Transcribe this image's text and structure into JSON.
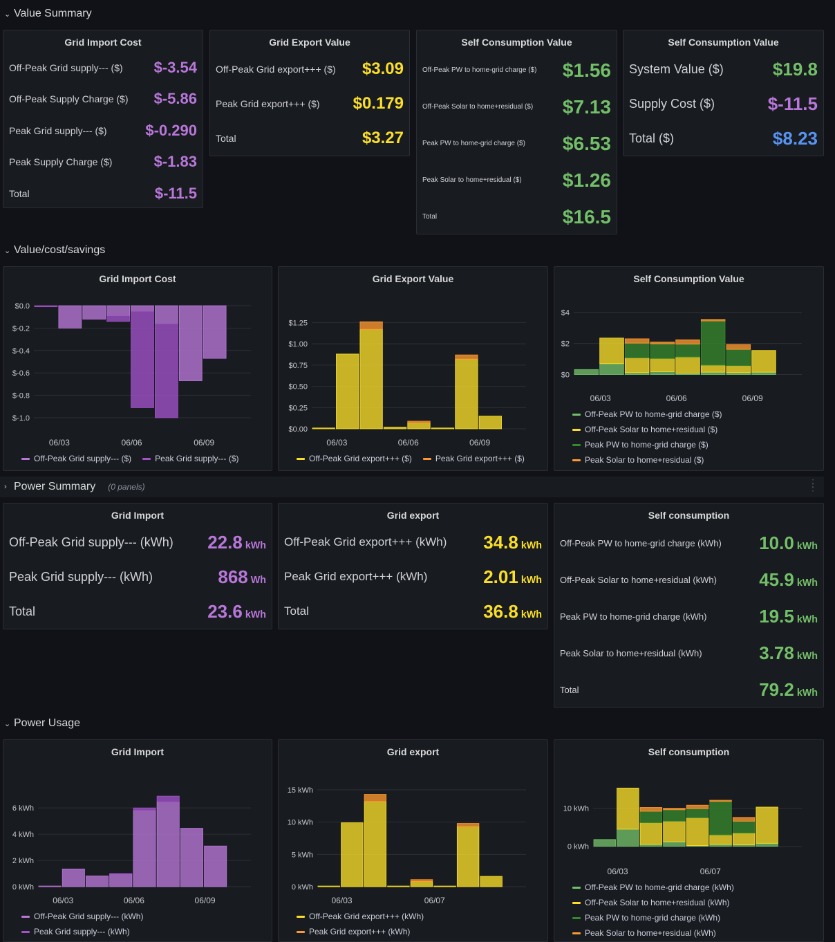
{
  "rows": {
    "value_summary": "Value Summary",
    "value_cost": "Value/cost/savings",
    "power_summary": "Power Summary",
    "power_summary_sub": "(0 panels)",
    "power_usage": "Power Usage"
  },
  "colors": {
    "purple": "#b877d9",
    "purple_dark": "#a352cc",
    "yellow": "#fade2a",
    "orange": "#ff9830",
    "green": "#73bf69",
    "green_dark": "#37872d",
    "blue": "#5794f2"
  },
  "vs": {
    "import": {
      "title": "Grid Import Cost",
      "rows": [
        {
          "label": "Off-Peak Grid supply--- ($)",
          "value": "$-3.54"
        },
        {
          "label": "Off-Peak Supply Charge ($)",
          "value": "$-5.86"
        },
        {
          "label": "Peak Grid supply--- ($)",
          "value": "$-0.290"
        },
        {
          "label": "Peak Supply Charge ($)",
          "value": "$-1.83"
        },
        {
          "label": "Total",
          "value": "$-11.5"
        }
      ]
    },
    "export": {
      "title": "Grid Export Value",
      "rows": [
        {
          "label": "Off-Peak Grid export+++ ($)",
          "value": "$3.09"
        },
        {
          "label": "Peak Grid export+++ ($)",
          "value": "$0.179"
        },
        {
          "label": "Total",
          "value": "$3.27"
        }
      ]
    },
    "self": {
      "title": "Self Consumption Value",
      "rows": [
        {
          "label": "Off-Peak PW to home-grid charge ($)",
          "value": "$1.56"
        },
        {
          "label": "Off-Peak Solar to home+residual ($)",
          "value": "$7.13"
        },
        {
          "label": "Peak PW to home-grid charge ($)",
          "value": "$6.53"
        },
        {
          "label": "Peak Solar to home+residual ($)",
          "value": "$1.26"
        },
        {
          "label": "Total",
          "value": "$16.5"
        }
      ]
    },
    "system": {
      "title": "Self Consumption Value",
      "rows": [
        {
          "label": "System Value ($)",
          "value": "$19.8"
        },
        {
          "label": "Supply Cost ($)",
          "value": "$-11.5"
        },
        {
          "label": "Total ($)",
          "value": "$8.23"
        }
      ]
    }
  },
  "ps": {
    "import": {
      "title": "Grid Import",
      "rows": [
        {
          "label": "Off-Peak Grid supply--- (kWh)",
          "value": "22.8",
          "unit": "kWh"
        },
        {
          "label": "Peak Grid supply--- (kWh)",
          "value": "868",
          "unit": "Wh"
        },
        {
          "label": "Total",
          "value": "23.6",
          "unit": "kWh"
        }
      ]
    },
    "export": {
      "title": "Grid export",
      "rows": [
        {
          "label": "Off-Peak Grid export+++ (kWh)",
          "value": "34.8",
          "unit": "kWh"
        },
        {
          "label": "Peak Grid export+++ (kWh)",
          "value": "2.01",
          "unit": "kWh"
        },
        {
          "label": "Total",
          "value": "36.8",
          "unit": "kWh"
        }
      ]
    },
    "self": {
      "title": "Self consumption",
      "rows": [
        {
          "label": "Off-Peak PW to home-grid charge (kWh)",
          "value": "10.0",
          "unit": "kWh"
        },
        {
          "label": "Off-Peak Solar to home+residual (kWh)",
          "value": "45.9",
          "unit": "kWh"
        },
        {
          "label": "Peak PW to home-grid charge (kWh)",
          "value": "19.5",
          "unit": "kWh"
        },
        {
          "label": "Peak Solar to home+residual (kWh)",
          "value": "3.78",
          "unit": "kWh"
        },
        {
          "label": "Total",
          "value": "79.2",
          "unit": "kWh"
        }
      ]
    }
  },
  "chart_data": [
    {
      "id": "c1",
      "title": "Grid Import Cost",
      "type": "bar",
      "stacked": true,
      "categories": [
        "06/02",
        "06/03",
        "06/04",
        "06/05",
        "06/06",
        "06/07",
        "06/08",
        "06/09",
        "06/10"
      ],
      "xticks": [
        "06/03",
        "06/06",
        "06/09"
      ],
      "xtick_idx": [
        1,
        4,
        7
      ],
      "ylim": [
        -1.0,
        0.0
      ],
      "yticks": [
        0.0,
        -0.2,
        -0.4,
        -0.6,
        -0.8,
        -1.0
      ],
      "ytick_labels": [
        "$0.0",
        "$-0.2",
        "$-0.4",
        "$-0.6",
        "$-0.8",
        "$-1.0"
      ],
      "series": [
        {
          "name": "Off-Peak Grid supply--- ($)",
          "color": "#b877d9",
          "values": [
            0.0,
            -0.2,
            -0.12,
            -0.09,
            -0.05,
            -0.16,
            -0.67,
            -0.47,
            0
          ]
        },
        {
          "name": "Peak Grid supply--- ($)",
          "color": "#a352cc",
          "values": [
            -0.01,
            0,
            0,
            -0.05,
            -0.86,
            -0.84,
            0,
            0,
            0
          ]
        }
      ]
    },
    {
      "id": "c2",
      "title": "Grid Export Value",
      "type": "bar",
      "stacked": true,
      "categories": [
        "06/02",
        "06/03",
        "06/04",
        "06/05",
        "06/06",
        "06/07",
        "06/08",
        "06/09",
        "06/10"
      ],
      "xticks": [
        "06/03",
        "06/06",
        "06/09"
      ],
      "xtick_idx": [
        1,
        4,
        7
      ],
      "ylim": [
        0,
        1.4
      ],
      "yticks": [
        0,
        0.25,
        0.5,
        0.75,
        1.0,
        1.25
      ],
      "ytick_labels": [
        "$0.00",
        "$0.25",
        "$0.50",
        "$0.75",
        "$1.00",
        "$1.25"
      ],
      "series": [
        {
          "name": "Off-Peak Grid export+++ ($)",
          "color": "#fade2a",
          "values": [
            0.01,
            0.88,
            1.17,
            0.02,
            0.07,
            0.01,
            0.82,
            0.15,
            0
          ]
        },
        {
          "name": "Peak Grid export+++ ($)",
          "color": "#ff9830",
          "values": [
            0,
            0,
            0.09,
            0,
            0.02,
            0,
            0.05,
            0,
            0
          ]
        }
      ]
    },
    {
      "id": "c3",
      "title": "Self Consumption Value",
      "type": "bar",
      "stacked": true,
      "categories": [
        "06/02",
        "06/03",
        "06/04",
        "06/05",
        "06/06",
        "06/07",
        "06/08",
        "06/09",
        "06/10"
      ],
      "xticks": [
        "06/03",
        "06/06",
        "06/09"
      ],
      "xtick_idx": [
        1,
        4,
        7
      ],
      "ylim": [
        -0.2,
        4.7
      ],
      "yticks": [
        0,
        2,
        4
      ],
      "ytick_labels": [
        "$0",
        "$2",
        "$4"
      ],
      "series": [
        {
          "name": "Off-Peak PW to home-grid charge ($)",
          "color": "#73bf69",
          "values": [
            0.32,
            0.7,
            0.12,
            0.18,
            0.08,
            0.15,
            0.12,
            0.15,
            0
          ]
        },
        {
          "name": "Off-Peak Solar to home+residual ($)",
          "color": "#fade2a",
          "values": [
            0,
            1.65,
            0.95,
            0.85,
            1.05,
            0.45,
            0.45,
            1.4,
            0
          ]
        },
        {
          "name": "Peak PW to home-grid charge ($)",
          "color": "#37872d",
          "values": [
            0,
            0,
            0.95,
            0.95,
            0.83,
            2.85,
            1.05,
            0,
            0
          ]
        },
        {
          "name": "Peak Solar to home+residual ($)",
          "color": "#ff9830",
          "values": [
            0,
            0,
            0.28,
            0.12,
            0.28,
            0.1,
            0.32,
            0,
            0
          ]
        }
      ]
    },
    {
      "id": "c4",
      "title": "Grid Import",
      "type": "bar",
      "stacked": true,
      "categories": [
        "06/02",
        "06/03",
        "06/04",
        "06/05",
        "06/06",
        "06/07",
        "06/08",
        "06/09",
        "06/10"
      ],
      "xticks": [
        "06/03",
        "06/06",
        "06/09"
      ],
      "xtick_idx": [
        1,
        4,
        7
      ],
      "ylim": [
        0,
        7.8
      ],
      "yticks": [
        0,
        2,
        4,
        6
      ],
      "ytick_labels": [
        "0 kWh",
        "2 kWh",
        "4 kWh",
        "6 kWh"
      ],
      "series": [
        {
          "name": "Off-Peak Grid supply--- (kWh)",
          "color": "#b877d9",
          "values": [
            0.05,
            1.35,
            0.82,
            0.95,
            5.8,
            6.45,
            4.45,
            3.1,
            0
          ]
        },
        {
          "name": "Peak Grid supply--- (kWh)",
          "color": "#a352cc",
          "values": [
            0,
            0,
            0,
            0.05,
            0.2,
            0.45,
            0,
            0,
            0
          ]
        }
      ]
    },
    {
      "id": "c5",
      "title": "Grid export",
      "type": "bar",
      "stacked": true,
      "categories": [
        "06/02",
        "06/03",
        "06/04",
        "06/05",
        "06/06",
        "06/07",
        "06/08",
        "06/09",
        "06/10"
      ],
      "xticks": [
        "06/03",
        "06/07"
      ],
      "xtick_idx": [
        1,
        5
      ],
      "ylim": [
        0,
        16.5
      ],
      "yticks": [
        0,
        5,
        10,
        15
      ],
      "ytick_labels": [
        "0 kWh",
        "5 kWh",
        "10 kWh",
        "15 kWh"
      ],
      "series": [
        {
          "name": "Off-Peak Grid export+++ (kWh)",
          "color": "#fade2a",
          "values": [
            0.1,
            9.9,
            13.2,
            0.1,
            0.8,
            0.1,
            9.3,
            1.6,
            0
          ]
        },
        {
          "name": "Peak Grid export+++ (kWh)",
          "color": "#ff9830",
          "values": [
            0,
            0,
            1.1,
            0,
            0.3,
            0,
            0.5,
            0,
            0
          ]
        }
      ]
    },
    {
      "id": "c6",
      "title": "Self consumption",
      "type": "bar",
      "stacked": true,
      "categories": [
        "06/02",
        "06/03",
        "06/04",
        "06/05",
        "06/06",
        "06/07",
        "06/08",
        "06/09",
        "06/10"
      ],
      "xticks": [
        "06/03",
        "06/07"
      ],
      "xtick_idx": [
        1,
        5
      ],
      "ylim": [
        -1.5,
        17
      ],
      "yticks": [
        0,
        10
      ],
      "ytick_labels": [
        "0 kWh",
        "10 kWh"
      ],
      "series": [
        {
          "name": "Off-Peak PW to home-grid charge (kWh)",
          "color": "#73bf69",
          "values": [
            1.8,
            4.5,
            0.5,
            1.2,
            0.2,
            0.5,
            0.4,
            0.8,
            0
          ]
        },
        {
          "name": "Off-Peak Solar to home+residual (kWh)",
          "color": "#fade2a",
          "values": [
            0,
            10.8,
            5.7,
            5.4,
            7.3,
            2.5,
            3.1,
            9.5,
            0
          ]
        },
        {
          "name": "Peak PW to home-grid charge (kWh)",
          "color": "#37872d",
          "values": [
            0,
            0,
            3.0,
            3.0,
            2.4,
            8.8,
            3.1,
            0,
            0
          ]
        },
        {
          "name": "Peak Solar to home+residual (kWh)",
          "color": "#ff9830",
          "values": [
            0,
            0,
            1.0,
            0.4,
            0.9,
            0.3,
            1.0,
            0,
            0
          ]
        }
      ]
    }
  ]
}
